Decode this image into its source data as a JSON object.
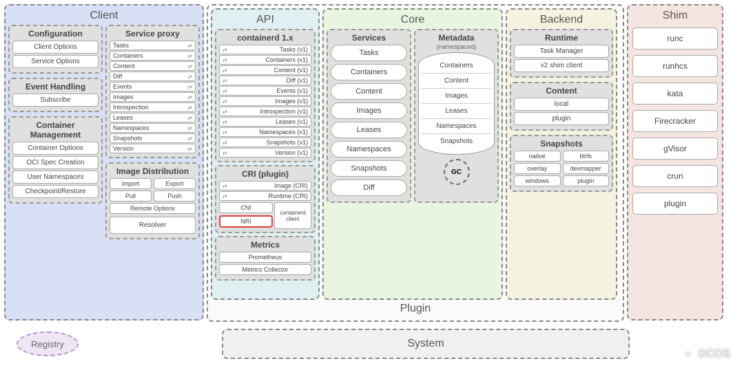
{
  "colors": {
    "client_bg": "#d8e0f5",
    "api_bg": "#e0f0f2",
    "core_bg": "#e8f5e0",
    "backend_bg": "#f5f2e0",
    "shim_bg": "#f5e5e0",
    "box_bg": "#e0e0e0",
    "border": "#888888",
    "nri_border": "#e04040",
    "registry_bg": "#f0e5f5",
    "registry_border": "#b090d0"
  },
  "columns": {
    "client": "Client",
    "api": "API",
    "core": "Core",
    "backend": "Backend",
    "shim": "Shim"
  },
  "client": {
    "config": {
      "title": "Configuration",
      "items": [
        "Client Options",
        "Service Options"
      ]
    },
    "event": {
      "title": "Event Handling",
      "items": [
        "Subscribe"
      ]
    },
    "container_mgmt": {
      "title": "Container Management",
      "items": [
        "Container Options",
        "OCI Spec Creation",
        "User Namespaces",
        "Checkpoint/Restore"
      ]
    },
    "service_proxy": {
      "title": "Service proxy",
      "items": [
        "Tasks",
        "Containers",
        "Content",
        "Diff",
        "Events",
        "Images",
        "Introspection",
        "Leases",
        "Namespaces",
        "Snapshots",
        "Version"
      ]
    },
    "image_dist": {
      "title": "Image Distribution",
      "row1": [
        "Import",
        "Export"
      ],
      "row2": [
        "Pull",
        "Push"
      ],
      "remote": "Remote Options",
      "resolver": "Resolver"
    }
  },
  "api": {
    "containerd": {
      "title": "containerd 1.x",
      "items": [
        "Tasks (v1)",
        "Containers (v1)",
        "Content (v1)",
        "Diff (v1)",
        "Events (v1)",
        "Images (v1)",
        "Introspection (v1)",
        "Leases (v1)",
        "Namespaces (v1)",
        "Snapshots (v1)",
        "Version (v1)"
      ]
    },
    "cri": {
      "title": "CRI (plugin)",
      "top": [
        "Image (CRI)",
        "Runtime (CRI)"
      ],
      "left": [
        "CNI",
        "NRI"
      ],
      "right": "containerd client"
    },
    "metrics": {
      "title": "Metrics",
      "items": [
        "Prometheus",
        "Metrics Collector"
      ]
    }
  },
  "core": {
    "services": {
      "title": "Services",
      "items": [
        "Tasks",
        "Containers",
        "Content",
        "Images",
        "Leases",
        "Namespaces",
        "Snapshots",
        "Diff"
      ]
    },
    "metadata": {
      "title": "Metadata",
      "sub": "(namespaced)",
      "items": [
        "Containers",
        "Content",
        "Images",
        "Leases",
        "Namespaces",
        "Snapshots"
      ],
      "gc": "GC"
    }
  },
  "backend": {
    "runtime": {
      "title": "Runtime",
      "items": [
        "Task Manager",
        "v2 shim client"
      ]
    },
    "content": {
      "title": "Content",
      "items": [
        "local",
        "plugin"
      ]
    },
    "snapshots": {
      "title": "Snapshots",
      "rows": [
        [
          "native",
          "btrfs"
        ],
        [
          "overlay",
          "devmapper"
        ],
        [
          "windows",
          "plugin"
        ]
      ]
    }
  },
  "shim": {
    "items": [
      "runc",
      "runhcs",
      "kata",
      "Firecracker",
      "gVisor",
      "crun",
      "plugin"
    ]
  },
  "plugin_label": "Plugin",
  "registry": "Registry",
  "system": "System",
  "watermark": "DCOS"
}
